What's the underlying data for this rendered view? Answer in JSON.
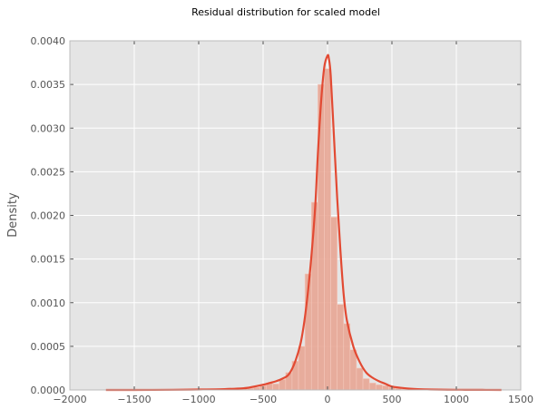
{
  "chart_data": {
    "type": "bar",
    "title": "Residual distribution for scaled model",
    "xlabel": "",
    "ylabel": "Density",
    "xlim": [
      -2000,
      1500
    ],
    "ylim": [
      0,
      0.004
    ],
    "xticks": [
      -2000,
      -1500,
      -1000,
      -500,
      0,
      500,
      1000,
      1500
    ],
    "xtick_labels": [
      "−2000",
      "−1500",
      "−1000",
      "−500",
      "0",
      "500",
      "1000",
      "1500"
    ],
    "yticks": [
      0,
      0.0005,
      0.001,
      0.0015,
      0.002,
      0.0025,
      0.003,
      0.0035,
      0.004
    ],
    "ytick_labels": [
      "0.0000",
      "0.0005",
      "0.0010",
      "0.0015",
      "0.0020",
      "0.0025",
      "0.0030",
      "0.0035",
      "0.0040"
    ],
    "grid": true,
    "background": "#e5e5e5",
    "bar_color": "#e8a28f",
    "line_color": "#e24a33",
    "histogram": {
      "bin_edges": [
        -825,
        -775,
        -725,
        -675,
        -625,
        -575,
        -525,
        -475,
        -425,
        -375,
        -325,
        -275,
        -225,
        -175,
        -125,
        -75,
        -25,
        25,
        75,
        125,
        175,
        225,
        275,
        325,
        375,
        425,
        475,
        525,
        575,
        625,
        675,
        725
      ],
      "values": [
        1e-05,
        1e-05,
        1e-05,
        2e-05,
        2e-05,
        3e-05,
        5e-05,
        8e-05,
        7e-05,
        0.00012,
        0.0002,
        0.00033,
        0.0005,
        0.00133,
        0.00215,
        0.0035,
        0.00368,
        0.00198,
        0.00098,
        0.00076,
        0.00046,
        0.00025,
        0.00013,
        8e-05,
        6e-05,
        5e-05,
        3e-05,
        2e-05,
        1e-05,
        1e-05,
        1e-05
      ]
    },
    "density_curve": {
      "x": [
        -1720,
        -1500,
        -1200,
        -1000,
        -800,
        -650,
        -600,
        -500,
        -450,
        -400,
        -350,
        -300,
        -250,
        -200,
        -150,
        -100,
        -75,
        -50,
        -25,
        0,
        10,
        25,
        50,
        75,
        100,
        125,
        150,
        200,
        250,
        300,
        350,
        400,
        450,
        500,
        600,
        700,
        800,
        1000,
        1200,
        1350
      ],
      "y": [
        0,
        0,
        2e-06,
        5e-06,
        1e-05,
        2e-05,
        3e-05,
        6e-05,
        8e-05,
        0.0001,
        0.00013,
        0.00018,
        0.00033,
        0.0006,
        0.00115,
        0.002,
        0.0027,
        0.0033,
        0.0037,
        0.00383,
        0.0038,
        0.0036,
        0.0029,
        0.0022,
        0.0016,
        0.0011,
        0.0008,
        0.0005,
        0.00032,
        0.0002,
        0.00014,
        0.0001,
        7e-05,
        4e-05,
        2e-05,
        1e-05,
        5e-06,
        2e-06,
        1e-06,
        0
      ]
    }
  }
}
